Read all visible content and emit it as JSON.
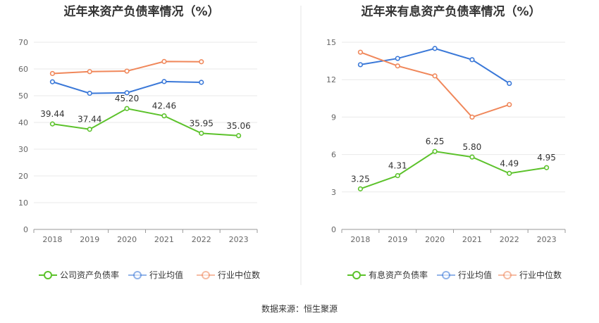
{
  "source_label": "数据来源：恒生聚源",
  "chart_data": [
    {
      "type": "line",
      "title": "近年来资产负债率情况（%）",
      "categories": [
        "2018",
        "2019",
        "2020",
        "2021",
        "2022",
        "2023"
      ],
      "ylim": [
        0,
        70
      ],
      "yticks": [
        "0",
        "10",
        "20",
        "30",
        "40",
        "50",
        "60",
        "70"
      ],
      "grid": true,
      "legend_position": "bottom",
      "series": [
        {
          "name": "公司资产负债率",
          "color": "#5cc22b",
          "values": [
            39.44,
            37.44,
            45.2,
            42.46,
            35.95,
            35.06
          ],
          "labels": [
            "39.44",
            "37.44",
            "45.20",
            "42.46",
            "35.95",
            "35.06"
          ]
        },
        {
          "name": "行业均值",
          "color": "#3a78d8",
          "values": [
            55.2,
            50.9,
            51.1,
            55.3,
            55.0,
            null
          ]
        },
        {
          "name": "行业中位数",
          "color": "#f0875a",
          "values": [
            58.3,
            59.0,
            59.2,
            62.8,
            62.7,
            null
          ]
        }
      ]
    },
    {
      "type": "line",
      "title": "近年来有息资产负债率情况（%）",
      "categories": [
        "2018",
        "2019",
        "2020",
        "2021",
        "2022",
        "2023"
      ],
      "ylim": [
        0,
        15
      ],
      "yticks": [
        "0",
        "3",
        "6",
        "9",
        "12",
        "15"
      ],
      "grid": true,
      "legend_position": "bottom",
      "series": [
        {
          "name": "有息资产负债率",
          "color": "#5cc22b",
          "values": [
            3.25,
            4.31,
            6.25,
            5.8,
            4.49,
            4.95
          ],
          "labels": [
            "3.25",
            "4.31",
            "6.25",
            "5.80",
            "4.49",
            "4.95"
          ]
        },
        {
          "name": "行业均值",
          "color": "#3a78d8",
          "values": [
            13.2,
            13.7,
            14.5,
            13.6,
            11.7,
            null
          ]
        },
        {
          "name": "行业中位数",
          "color": "#f0875a",
          "values": [
            14.2,
            13.1,
            12.3,
            9.0,
            10.0,
            null
          ]
        }
      ]
    }
  ]
}
